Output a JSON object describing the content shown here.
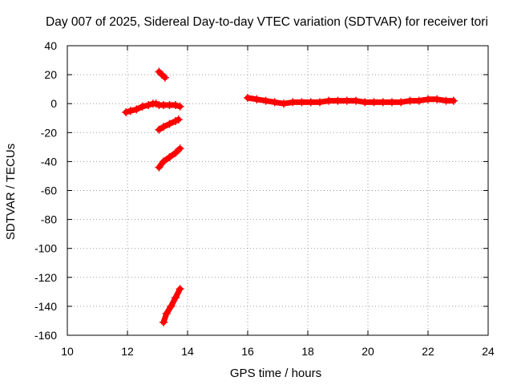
{
  "chart_data": {
    "type": "scatter",
    "title": "Day 007 of 2025, Sidereal Day-to-day VTEC variation (SDTVAR) for receiver tori",
    "xlabel": "GPS time / hours",
    "ylabel": "SDTVAR / TECUs",
    "xlim": [
      10,
      24
    ],
    "ylim": [
      -160,
      40
    ],
    "xticks": [
      10,
      12,
      14,
      16,
      18,
      20,
      22,
      24
    ],
    "yticks": [
      40,
      20,
      0,
      -20,
      -40,
      -60,
      -80,
      -100,
      -120,
      -140,
      -160
    ],
    "grid": true,
    "legend": "none",
    "series_color": "#ff0000",
    "series": [
      {
        "name": "seg1",
        "x": [
          11.95,
          12.1,
          12.3,
          12.5,
          12.7,
          12.85,
          12.95,
          13.05,
          13.2,
          13.4,
          13.6,
          13.75
        ],
        "y": [
          -6,
          -5,
          -4,
          -2,
          -1,
          0,
          0,
          -1,
          -1,
          -1,
          -1,
          -2
        ]
      },
      {
        "name": "seg2",
        "x": [
          13.05,
          13.15,
          13.25
        ],
        "y": [
          22,
          20,
          18
        ]
      },
      {
        "name": "seg3",
        "x": [
          13.05,
          13.2,
          13.4,
          13.6,
          13.7
        ],
        "y": [
          -18,
          -16,
          -14,
          -12,
          -11
        ]
      },
      {
        "name": "seg4",
        "x": [
          13.05,
          13.2,
          13.4,
          13.6,
          13.75
        ],
        "y": [
          -44,
          -40,
          -37,
          -34,
          -31
        ]
      },
      {
        "name": "seg5",
        "x": [
          13.2,
          13.3,
          13.45,
          13.6,
          13.75
        ],
        "y": [
          -151,
          -145,
          -140,
          -134,
          -128
        ]
      },
      {
        "name": "seg6",
        "x": [
          16.0,
          16.3,
          16.6,
          16.9,
          17.2,
          17.5,
          17.8,
          18.1,
          18.4,
          18.7,
          19.0,
          19.3,
          19.6,
          19.9,
          20.2,
          20.5,
          20.8,
          21.1,
          21.4,
          21.7,
          22.0,
          22.3,
          22.6,
          22.85
        ],
        "y": [
          4,
          3,
          2,
          1,
          0,
          1,
          1,
          1,
          1,
          2,
          2,
          2,
          2,
          1,
          1,
          1,
          1,
          1,
          2,
          2,
          3,
          3,
          2,
          2
        ]
      }
    ]
  }
}
